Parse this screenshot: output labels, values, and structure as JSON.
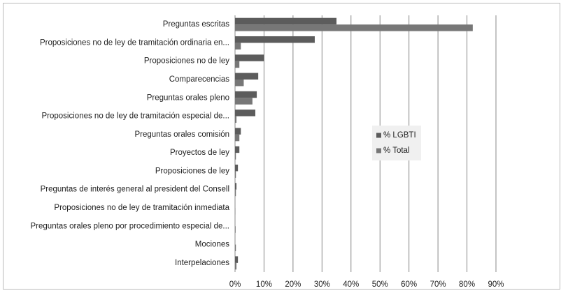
{
  "chart_data": {
    "type": "bar",
    "orientation": "horizontal",
    "categories": [
      "Preguntas escritas",
      "Proposiciones no de ley de tramitación ordinaria en...",
      "Proposiciones no de ley",
      "Comparecencias",
      "Preguntas orales pleno",
      "Proposiciones no de ley  de tramitación especial de...",
      "Preguntas orales comisión",
      "Proyectos de ley",
      "Proposiciones de ley",
      "Preguntas de interés general al president del Consell",
      "Proposiciones no de ley de tramitación inmediata",
      "Preguntas orales pleno por procedimiento especial de...",
      "Mociones",
      "Interpelaciones"
    ],
    "series": [
      {
        "name": "% LGBTI",
        "color": "#5c5c5c",
        "values": [
          35,
          27.5,
          10,
          8,
          7.5,
          7,
          2,
          1.5,
          1,
          0.5,
          0,
          0,
          0,
          1
        ]
      },
      {
        "name": "% Total",
        "color": "#777777",
        "values": [
          82,
          2,
          1.5,
          3,
          6,
          0.5,
          1.5,
          0.3,
          0.3,
          0.3,
          0.1,
          0.2,
          0.3,
          0.5
        ]
      }
    ],
    "xlim": [
      0,
      90
    ],
    "xticks": [
      {
        "value": 0,
        "label": "0%"
      },
      {
        "value": 10,
        "label": "10%"
      },
      {
        "value": 20,
        "label": "20%"
      },
      {
        "value": 30,
        "label": "30%"
      },
      {
        "value": 40,
        "label": "40%"
      },
      {
        "value": 50,
        "label": "50%"
      },
      {
        "value": 60,
        "label": "60%"
      },
      {
        "value": 70,
        "label": "70%"
      },
      {
        "value": 80,
        "label": "80%"
      },
      {
        "value": 90,
        "label": "90%"
      }
    ],
    "grid": true,
    "legend": "center"
  }
}
